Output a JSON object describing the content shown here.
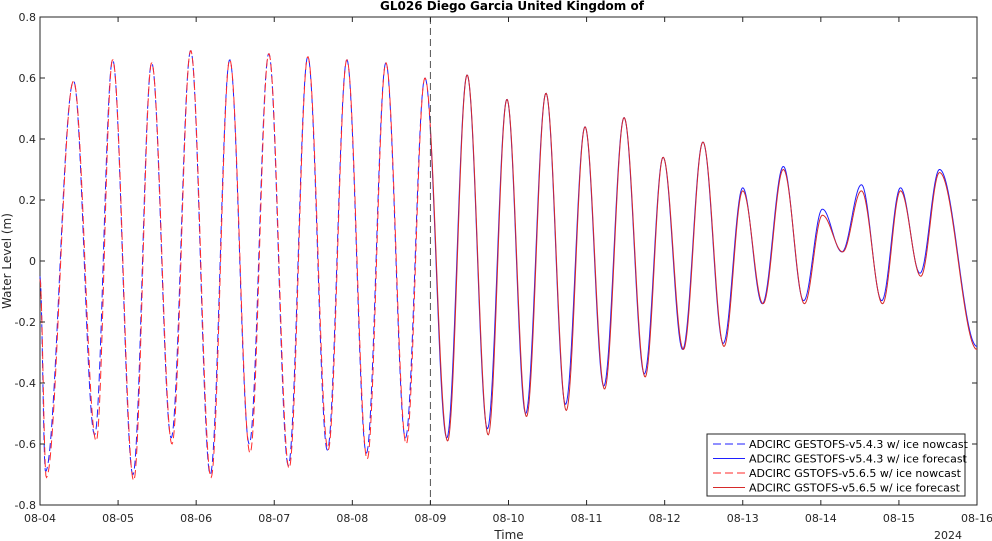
{
  "chart_data": {
    "type": "line",
    "title": "GL026 Diego Garcia United Kingdom of",
    "xlabel": "Time",
    "ylabel": "Water Level (m)",
    "x_tick_labels": [
      "08-04",
      "08-05",
      "08-06",
      "08-07",
      "08-08",
      "08-09",
      "08-10",
      "08-11",
      "08-12",
      "08-13",
      "08-14",
      "08-15",
      "08-16"
    ],
    "x_year_label": "2024",
    "xlim_days": [
      4,
      16
    ],
    "ylim": [
      -0.8,
      0.8
    ],
    "y_ticks": [
      "-0.8",
      "-0.6",
      "-0.4",
      "-0.2",
      "0",
      "0.2",
      "0.4",
      "0.6",
      "0.8"
    ],
    "nowcast_forecast_boundary_day": 9,
    "grid": false,
    "legend_position": "bottom-right",
    "extrema": {
      "v543": [
        [
          4.0,
          -0.05
        ],
        [
          4.07,
          -0.69
        ],
        [
          4.43,
          0.59
        ],
        [
          4.7,
          -0.57
        ],
        [
          4.93,
          0.66
        ],
        [
          5.19,
          -0.7
        ],
        [
          5.43,
          0.65
        ],
        [
          5.68,
          -0.58
        ],
        [
          5.93,
          0.69
        ],
        [
          6.18,
          -0.7
        ],
        [
          6.43,
          0.66
        ],
        [
          6.68,
          -0.6
        ],
        [
          6.93,
          0.68
        ],
        [
          7.18,
          -0.67
        ],
        [
          7.43,
          0.67
        ],
        [
          7.68,
          -0.62
        ],
        [
          7.93,
          0.66
        ],
        [
          8.18,
          -0.63
        ],
        [
          8.43,
          0.65
        ],
        [
          8.68,
          -0.58
        ],
        [
          8.93,
          0.6
        ],
        [
          9.21,
          -0.58
        ],
        [
          9.47,
          0.61
        ],
        [
          9.73,
          -0.55
        ],
        [
          9.98,
          0.53
        ],
        [
          10.22,
          -0.5
        ],
        [
          10.48,
          0.55
        ],
        [
          10.73,
          -0.47
        ],
        [
          10.98,
          0.44
        ],
        [
          11.22,
          -0.41
        ],
        [
          11.48,
          0.47
        ],
        [
          11.74,
          -0.37
        ],
        [
          11.98,
          0.34
        ],
        [
          12.23,
          -0.29
        ],
        [
          12.49,
          0.39
        ],
        [
          12.75,
          -0.27
        ],
        [
          13.0,
          0.24
        ],
        [
          13.25,
          -0.14
        ],
        [
          13.52,
          0.31
        ],
        [
          13.78,
          -0.13
        ],
        [
          14.02,
          0.17
        ],
        [
          14.27,
          0.03
        ],
        [
          14.52,
          0.25
        ],
        [
          14.78,
          -0.13
        ],
        [
          15.02,
          0.24
        ],
        [
          15.27,
          -0.04
        ],
        [
          15.52,
          0.3
        ],
        [
          16.0,
          -0.28
        ]
      ],
      "v565": [
        [
          4.0,
          -0.06
        ],
        [
          4.08,
          -0.71
        ],
        [
          4.43,
          0.59
        ],
        [
          4.72,
          -0.59
        ],
        [
          4.93,
          0.66
        ],
        [
          5.2,
          -0.72
        ],
        [
          5.43,
          0.65
        ],
        [
          5.69,
          -0.6
        ],
        [
          5.93,
          0.69
        ],
        [
          6.19,
          -0.71
        ],
        [
          6.43,
          0.66
        ],
        [
          6.69,
          -0.63
        ],
        [
          6.93,
          0.68
        ],
        [
          7.19,
          -0.68
        ],
        [
          7.43,
          0.67
        ],
        [
          7.69,
          -0.62
        ],
        [
          7.93,
          0.66
        ],
        [
          8.19,
          -0.65
        ],
        [
          8.43,
          0.65
        ],
        [
          8.69,
          -0.6
        ],
        [
          8.93,
          0.6
        ],
        [
          9.22,
          -0.59
        ],
        [
          9.47,
          0.61
        ],
        [
          9.74,
          -0.57
        ],
        [
          9.98,
          0.53
        ],
        [
          10.23,
          -0.51
        ],
        [
          10.48,
          0.55
        ],
        [
          10.74,
          -0.49
        ],
        [
          10.98,
          0.44
        ],
        [
          11.23,
          -0.42
        ],
        [
          11.48,
          0.47
        ],
        [
          11.75,
          -0.38
        ],
        [
          11.98,
          0.34
        ],
        [
          12.24,
          -0.29
        ],
        [
          12.49,
          0.39
        ],
        [
          12.76,
          -0.28
        ],
        [
          13.0,
          0.23
        ],
        [
          13.26,
          -0.14
        ],
        [
          13.52,
          0.3
        ],
        [
          13.79,
          -0.14
        ],
        [
          14.02,
          0.15
        ],
        [
          14.28,
          0.03
        ],
        [
          14.52,
          0.23
        ],
        [
          14.79,
          -0.14
        ],
        [
          15.02,
          0.23
        ],
        [
          15.28,
          -0.05
        ],
        [
          15.52,
          0.29
        ],
        [
          16.0,
          -0.29
        ]
      ]
    },
    "series": [
      {
        "name": "ADCIRC GESTOFS-v5.4.3 w/ ice nowcast",
        "source": "v543",
        "range": [
          4,
          9
        ],
        "color": "#1f1fff",
        "dash": "8,4"
      },
      {
        "name": "ADCIRC GESTOFS-v5.4.3 w/ ice forecast",
        "source": "v543",
        "range": [
          9,
          16
        ],
        "color": "#1f1fff",
        "dash": ""
      },
      {
        "name": "ADCIRC GSTOFS-v5.6.5 w/ ice nowcast",
        "source": "v565",
        "range": [
          4,
          9
        ],
        "color": "#ff2a2a",
        "dash": "8,4"
      },
      {
        "name": "ADCIRC GSTOFS-v5.6.5 w/ ice forecast",
        "source": "v565",
        "range": [
          9,
          16
        ],
        "color": "#d62a2a",
        "dash": ""
      }
    ]
  }
}
